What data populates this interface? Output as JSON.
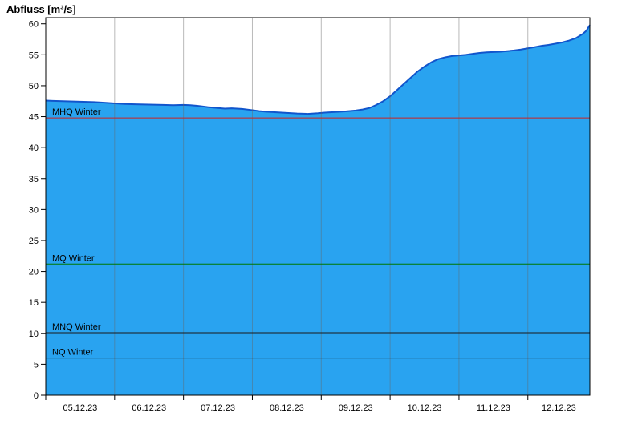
{
  "chart_data": {
    "type": "area",
    "title": "Abfluss [m³/s]",
    "xlabel": "",
    "ylabel": "Abfluss [m³/s]",
    "ylim": [
      0,
      61
    ],
    "xlim": [
      0,
      7.9
    ],
    "x_unit": "days from 05.12.23 00:00",
    "grid": "vertical-day-boundaries",
    "legend_position": "none",
    "yticks": [
      0,
      5,
      10,
      15,
      20,
      25,
      30,
      35,
      40,
      45,
      50,
      55,
      60
    ],
    "xlabels": [
      "05.12.23",
      "06.12.23",
      "07.12.23",
      "08.12.23",
      "09.12.23",
      "10.12.23",
      "11.12.23",
      "12.12.23"
    ],
    "series": [
      {
        "name": "Abfluss",
        "points": [
          [
            0,
            47.6
          ],
          [
            0.1,
            47.55
          ],
          [
            0.25,
            47.5
          ],
          [
            0.4,
            47.45
          ],
          [
            0.55,
            47.4
          ],
          [
            0.7,
            47.35
          ],
          [
            0.85,
            47.25
          ],
          [
            1.0,
            47.15
          ],
          [
            1.15,
            47.05
          ],
          [
            1.3,
            47.0
          ],
          [
            1.5,
            46.95
          ],
          [
            1.7,
            46.9
          ],
          [
            1.85,
            46.85
          ],
          [
            2.0,
            46.9
          ],
          [
            2.1,
            46.85
          ],
          [
            2.2,
            46.75
          ],
          [
            2.35,
            46.55
          ],
          [
            2.5,
            46.4
          ],
          [
            2.6,
            46.3
          ],
          [
            2.7,
            46.35
          ],
          [
            2.85,
            46.25
          ],
          [
            3.0,
            46.05
          ],
          [
            3.1,
            45.9
          ],
          [
            3.2,
            45.8
          ],
          [
            3.35,
            45.7
          ],
          [
            3.5,
            45.6
          ],
          [
            3.65,
            45.5
          ],
          [
            3.8,
            45.45
          ],
          [
            3.95,
            45.55
          ],
          [
            4.05,
            45.65
          ],
          [
            4.2,
            45.75
          ],
          [
            4.35,
            45.85
          ],
          [
            4.5,
            46.0
          ],
          [
            4.6,
            46.15
          ],
          [
            4.7,
            46.4
          ],
          [
            4.8,
            46.9
          ],
          [
            4.9,
            47.5
          ],
          [
            5.0,
            48.3
          ],
          [
            5.1,
            49.3
          ],
          [
            5.2,
            50.3
          ],
          [
            5.3,
            51.3
          ],
          [
            5.4,
            52.3
          ],
          [
            5.5,
            53.1
          ],
          [
            5.6,
            53.8
          ],
          [
            5.7,
            54.3
          ],
          [
            5.8,
            54.6
          ],
          [
            5.9,
            54.8
          ],
          [
            6.0,
            54.9
          ],
          [
            6.1,
            55.0
          ],
          [
            6.2,
            55.15
          ],
          [
            6.3,
            55.3
          ],
          [
            6.4,
            55.4
          ],
          [
            6.5,
            55.45
          ],
          [
            6.6,
            55.5
          ],
          [
            6.7,
            55.6
          ],
          [
            6.8,
            55.7
          ],
          [
            6.9,
            55.85
          ],
          [
            7.0,
            56.05
          ],
          [
            7.1,
            56.25
          ],
          [
            7.2,
            56.45
          ],
          [
            7.3,
            56.6
          ],
          [
            7.4,
            56.8
          ],
          [
            7.5,
            57.0
          ],
          [
            7.6,
            57.3
          ],
          [
            7.7,
            57.7
          ],
          [
            7.8,
            58.4
          ],
          [
            7.85,
            58.9
          ],
          [
            7.9,
            59.8
          ]
        ]
      }
    ],
    "reference_lines": [
      {
        "label": "MHQ Winter",
        "value": 44.8,
        "color": "#cc2222"
      },
      {
        "label": "MQ Winter",
        "value": 21.2,
        "color": "#007700"
      },
      {
        "label": "MNQ Winter",
        "value": 10.1,
        "color": "#1a1a1a"
      },
      {
        "label": "NQ Winter",
        "value": 6.0,
        "color": "#1a1a1a"
      }
    ],
    "colors": {
      "fill": "#29a3f0",
      "edge": "#1155cc",
      "grid": "#666666",
      "axis": "#000000",
      "text": "#000000"
    }
  }
}
